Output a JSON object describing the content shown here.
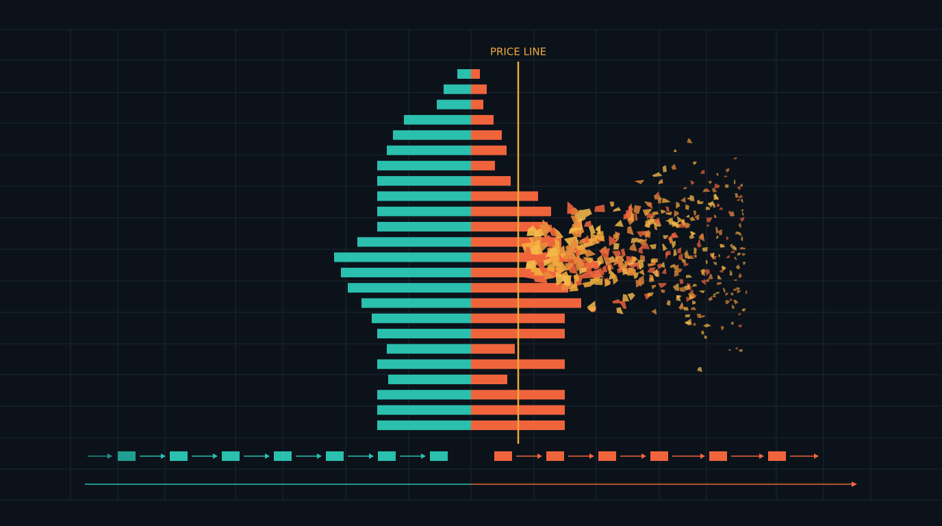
{
  "chart_data": {
    "type": "butterfly",
    "xlim": [
      -688,
      688
    ],
    "series": [
      {
        "color": "#2bbfae",
        "values": [
          20,
          40,
          50,
          98,
          114,
          123,
          137,
          137,
          137,
          137,
          137,
          166,
          200,
          190,
          180,
          160,
          145,
          137,
          123,
          137,
          121,
          137,
          137,
          137
        ]
      },
      {
        "color": "#f0643c",
        "values": [
          13,
          23,
          18,
          33,
          45,
          52,
          35,
          58,
          98,
          117,
          112,
          132,
          142,
          132,
          142,
          161,
          137,
          137,
          64,
          137,
          53,
          137,
          137,
          137
        ]
      }
    ],
    "price_line": {
      "label": "PRICE LINE",
      "value": 69,
      "color": "#f2a93b"
    }
  }
}
